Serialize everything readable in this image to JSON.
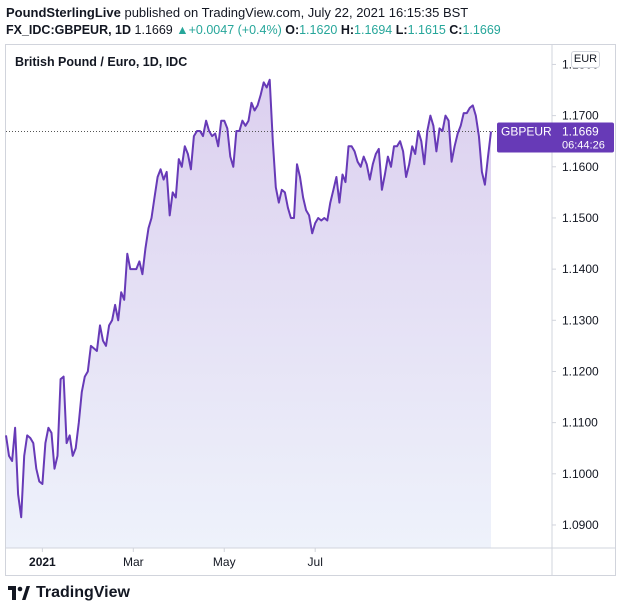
{
  "header": {
    "author": "PoundSterlingLive",
    "published": "published on TradingView.com, July 22, 2021 16:15:35 BST",
    "symbol": "FX_IDC:GBPEUR, 1D",
    "last": "1.1669",
    "change_arrow": "▲",
    "change": "+0.0047 (+0.4%)",
    "o_label": "O:",
    "o_value": "1.1620",
    "h_label": "H:",
    "h_value": "1.1694",
    "l_label": "L:",
    "l_value": "1.1615",
    "c_label": "C:",
    "c_value": "1.1669"
  },
  "legend": "British Pound / Euro, 1D, IDC",
  "currency": "EUR",
  "price_label": {
    "name": "GBPEUR",
    "value": "1.1669",
    "countdown": "06:44:26"
  },
  "brand": "TradingView",
  "colors": {
    "line": "#673ab7",
    "up": "#26a69a",
    "grid": "#d1d4dc",
    "fill_top": "#dcd0ef",
    "fill_bottom": "#eef2fb"
  },
  "chart_data": {
    "type": "area",
    "title": "British Pound / Euro, 1D, IDC",
    "series": [
      {
        "name": "GBPEUR"
      }
    ],
    "x_tick_labels": [
      "2021",
      "Mar",
      "May",
      "Jul"
    ],
    "x_tick_index": [
      12,
      42,
      72,
      102
    ],
    "y_ticks": [
      1.09,
      1.1,
      1.11,
      1.12,
      1.13,
      1.14,
      1.15,
      1.16,
      1.17,
      1.18
    ],
    "y_tick_labels": [
      "1.0900",
      "1.1000",
      "1.1100",
      "1.1200",
      "1.1300",
      "1.1400",
      "1.1500",
      "1.1600",
      "1.1700",
      "1.1800"
    ],
    "ylim": [
      1.0855,
      1.1838
    ],
    "last_value": 1.1669,
    "grid": false,
    "values": [
      1.1075,
      1.1035,
      1.1025,
      1.109,
      1.096,
      1.0915,
      1.1035,
      1.1075,
      1.107,
      1.106,
      1.101,
      1.0985,
      1.098,
      1.106,
      1.109,
      1.108,
      1.101,
      1.1035,
      1.1185,
      1.119,
      1.106,
      1.1075,
      1.1035,
      1.105,
      1.11,
      1.116,
      1.119,
      1.12,
      1.125,
      1.1245,
      1.124,
      1.129,
      1.126,
      1.125,
      1.129,
      1.13,
      1.133,
      1.13,
      1.1355,
      1.134,
      1.143,
      1.14,
      1.14,
      1.14,
      1.1415,
      1.139,
      1.144,
      1.148,
      1.15,
      1.154,
      1.158,
      1.1595,
      1.1575,
      1.159,
      1.1505,
      1.155,
      1.154,
      1.1615,
      1.16,
      1.164,
      1.1625,
      1.1595,
      1.166,
      1.167,
      1.167,
      1.166,
      1.169,
      1.167,
      1.166,
      1.1665,
      1.164,
      1.169,
      1.169,
      1.1675,
      1.162,
      1.16,
      1.167,
      1.167,
      1.169,
      1.168,
      1.169,
      1.1725,
      1.171,
      1.172,
      1.174,
      1.1765,
      1.1755,
      1.177,
      1.165,
      1.156,
      1.153,
      1.1555,
      1.155,
      1.152,
      1.15,
      1.15,
      1.1605,
      1.158,
      1.154,
      1.1515,
      1.1505,
      1.147,
      1.149,
      1.15,
      1.1495,
      1.15,
      1.1495,
      1.153,
      1.1555,
      1.158,
      1.153,
      1.1585,
      1.157,
      1.164,
      1.164,
      1.163,
      1.161,
      1.16,
      1.162,
      1.1605,
      1.1575,
      1.1605,
      1.1625,
      1.1635,
      1.1555,
      1.1585,
      1.162,
      1.16,
      1.164,
      1.164,
      1.165,
      1.163,
      1.158,
      1.1605,
      1.164,
      1.1625,
      1.167,
      1.165,
      1.1605,
      1.167,
      1.17,
      1.168,
      1.163,
      1.1675,
      1.167,
      1.17,
      1.169,
      1.161,
      1.164,
      1.1665,
      1.168,
      1.1705,
      1.1705,
      1.1715,
      1.172,
      1.17,
      1.166,
      1.159,
      1.1565,
      1.162,
      1.1669
    ]
  }
}
